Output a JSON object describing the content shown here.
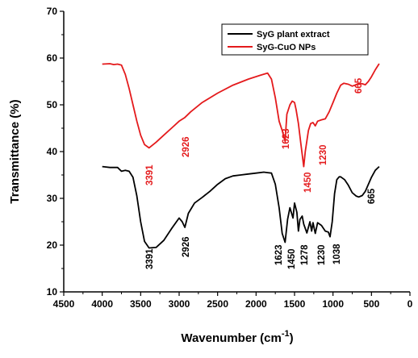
{
  "chart_data": {
    "type": "line",
    "title": "",
    "xlabel": "Wavenumber (cm",
    "xlabel_sup": "-1",
    "xlabel_end": ")",
    "ylabel": "Transmittance (%)",
    "xlim": [
      4500,
      0
    ],
    "ylim": [
      10,
      70
    ],
    "x_ticks": [
      4500,
      4000,
      3500,
      3000,
      2500,
      2000,
      1500,
      1000,
      500,
      0
    ],
    "y_ticks": [
      10,
      20,
      30,
      40,
      50,
      60,
      70
    ],
    "x_tick_labels": [
      "4500",
      "4000",
      "3500",
      "3000",
      "2500",
      "2000",
      "1500",
      "1000",
      "500",
      "0"
    ],
    "y_tick_labels": [
      "10",
      "20",
      "30",
      "40",
      "50",
      "60",
      "70"
    ],
    "grid": false,
    "legend_position": "top-right",
    "series": [
      {
        "name": "SyG plant extract",
        "color": "#000000",
        "x": [
          4000,
          3900,
          3800,
          3750,
          3700,
          3650,
          3600,
          3550,
          3500,
          3450,
          3391,
          3300,
          3200,
          3100,
          3000,
          2960,
          2926,
          2880,
          2800,
          2700,
          2600,
          2500,
          2400,
          2300,
          2200,
          2100,
          2000,
          1900,
          1850,
          1800,
          1750,
          1700,
          1660,
          1623,
          1590,
          1560,
          1520,
          1500,
          1470,
          1450,
          1430,
          1400,
          1380,
          1340,
          1300,
          1278,
          1260,
          1230,
          1200,
          1150,
          1100,
          1060,
          1038,
          1010,
          980,
          950,
          920,
          900,
          850,
          800,
          750,
          700,
          665,
          620,
          580,
          540,
          500,
          450,
          400
        ],
        "values": [
          36.8,
          36.6,
          36.6,
          35.8,
          36.0,
          35.8,
          34.5,
          30.5,
          25.0,
          20.8,
          19.4,
          19.5,
          21.0,
          23.5,
          25.8,
          25.0,
          23.8,
          26.8,
          29.0,
          30.2,
          31.5,
          33.0,
          34.2,
          34.8,
          35.0,
          35.2,
          35.4,
          35.6,
          35.5,
          35.4,
          33.0,
          28.0,
          22.5,
          20.6,
          25.5,
          28.0,
          25.8,
          29.0,
          27.0,
          23.0,
          25.5,
          26.2,
          24.5,
          22.6,
          25.0,
          23.0,
          24.8,
          22.5,
          24.8,
          24.2,
          23.0,
          22.8,
          21.8,
          25.0,
          31.0,
          34.0,
          34.6,
          34.6,
          34.0,
          32.8,
          31.2,
          30.5,
          30.3,
          30.6,
          31.5,
          33.0,
          34.5,
          36.0,
          36.8
        ],
        "peak_labels": [
          "3391",
          "2926",
          "1623",
          "1450",
          "1278",
          "1230",
          "1038",
          "665"
        ]
      },
      {
        "name": "SyG-CuO NPs",
        "color": "#e41a1c",
        "x": [
          4000,
          3900,
          3850,
          3800,
          3750,
          3700,
          3650,
          3600,
          3550,
          3500,
          3450,
          3391,
          3300,
          3200,
          3100,
          3000,
          2926,
          2850,
          2700,
          2500,
          2300,
          2100,
          1950,
          1850,
          1800,
          1750,
          1700,
          1660,
          1623,
          1600,
          1560,
          1530,
          1500,
          1480,
          1450,
          1420,
          1380,
          1360,
          1320,
          1290,
          1260,
          1230,
          1200,
          1150,
          1100,
          1050,
          1000,
          950,
          900,
          860,
          800,
          750,
          700,
          665,
          620,
          580,
          540,
          500,
          450,
          400
        ],
        "values": [
          58.7,
          58.8,
          58.6,
          58.7,
          58.5,
          56.5,
          53.5,
          50.0,
          46.5,
          43.5,
          41.5,
          40.8,
          42.0,
          43.5,
          45.0,
          46.5,
          47.3,
          48.5,
          50.5,
          52.5,
          54.2,
          55.5,
          56.3,
          56.8,
          55.5,
          51.5,
          46.5,
          44.5,
          42.2,
          48.0,
          50.0,
          50.8,
          50.5,
          49.0,
          46.0,
          42.0,
          36.8,
          40.0,
          44.5,
          46.0,
          46.2,
          45.5,
          46.5,
          46.8,
          47.0,
          48.5,
          50.5,
          52.5,
          54.2,
          54.6,
          54.4,
          54.0,
          54.3,
          54.6,
          54.5,
          54.3,
          55.0,
          56.0,
          57.5,
          58.8
        ],
        "peak_labels": [
          "3391",
          "2926",
          "1623",
          "1450",
          "1230",
          "665"
        ]
      }
    ]
  }
}
